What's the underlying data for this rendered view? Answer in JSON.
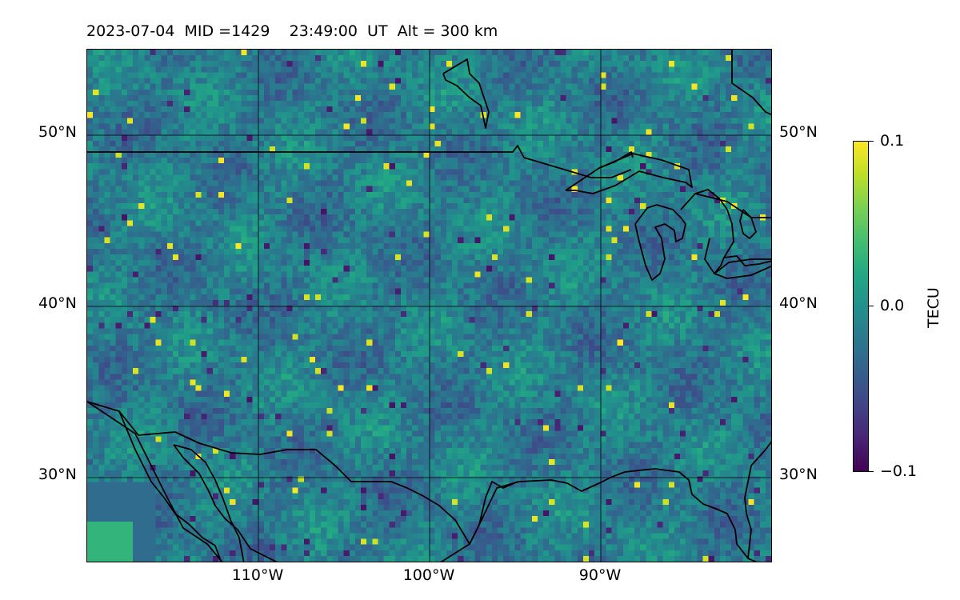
{
  "title": {
    "date": "2023-07-04",
    "mid": "MID =1429",
    "time": "23:49:00  UT",
    "alt": "Alt = 300 km"
  },
  "map": {
    "lat_labels": [
      "50°N",
      "40°N",
      "30°N"
    ],
    "lon_labels": [
      "110°W",
      "100°W",
      "90°W"
    ],
    "lon_range": [
      -120,
      -80
    ],
    "lat_range": [
      25,
      55
    ],
    "gridlines": true,
    "coastlines": true,
    "colormap": "viridis",
    "gridline_color": "#000000",
    "outline_color": "#000000"
  },
  "colorbar": {
    "label": "TECU",
    "ticks": [
      "0.1",
      "0.0",
      "−0.1"
    ],
    "min": -0.1,
    "max": 0.1
  }
}
